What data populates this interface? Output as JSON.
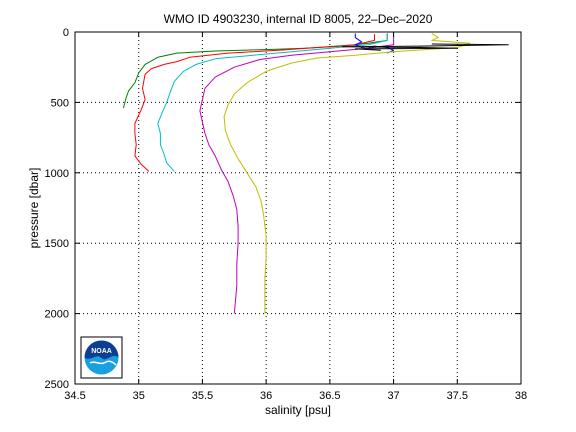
{
  "chart_data": {
    "type": "line",
    "title": "WMO ID 4903230, internal ID 8005, 22–Dec–2020",
    "xlabel": "salinity [psu]",
    "ylabel": "pressure [dbar]",
    "xlim": [
      34.5,
      38
    ],
    "ylim": [
      0,
      2500
    ],
    "y_reversed": true,
    "grid": true,
    "x_ticks": [
      34.5,
      35,
      35.5,
      36,
      36.5,
      37,
      37.5,
      38
    ],
    "x_tick_labels": [
      "34.5",
      "35",
      "35.5",
      "36",
      "36.5",
      "37",
      "37.5",
      "38"
    ],
    "y_ticks": [
      0,
      500,
      1000,
      1500,
      2000,
      2500
    ],
    "y_tick_labels": [
      "0",
      "500",
      "1000",
      "1500",
      "2000",
      "2500"
    ],
    "series": [
      {
        "color": "#008000",
        "points": [
          [
            36.95,
            10
          ],
          [
            36.95,
            60
          ],
          [
            36.8,
            80
          ],
          [
            36.6,
            100
          ],
          [
            36.3,
            115
          ],
          [
            36.0,
            125
          ],
          [
            35.6,
            135
          ],
          [
            35.3,
            150
          ],
          [
            35.15,
            180
          ],
          [
            35.05,
            230
          ],
          [
            35.0,
            290
          ],
          [
            34.97,
            360
          ],
          [
            34.92,
            420
          ],
          [
            34.9,
            470
          ],
          [
            34.88,
            540
          ]
        ]
      },
      {
        "color": "#ff0000",
        "points": [
          [
            36.85,
            15
          ],
          [
            36.85,
            60
          ],
          [
            36.7,
            90
          ],
          [
            36.4,
            110
          ],
          [
            36.1,
            130
          ],
          [
            35.7,
            150
          ],
          [
            35.4,
            180
          ],
          [
            35.3,
            210
          ],
          [
            35.2,
            230
          ],
          [
            35.1,
            260
          ],
          [
            35.05,
            300
          ],
          [
            35.03,
            400
          ],
          [
            35.05,
            480
          ],
          [
            35.02,
            550
          ],
          [
            34.97,
            650
          ],
          [
            34.97,
            720
          ],
          [
            34.98,
            800
          ],
          [
            34.97,
            880
          ],
          [
            35.02,
            940
          ],
          [
            35.08,
            990
          ]
        ]
      },
      {
        "color": "#00bfbf",
        "points": [
          [
            36.95,
            20
          ],
          [
            36.95,
            60
          ],
          [
            36.8,
            90
          ],
          [
            36.5,
            115
          ],
          [
            36.2,
            140
          ],
          [
            35.9,
            165
          ],
          [
            35.6,
            190
          ],
          [
            35.45,
            230
          ],
          [
            35.35,
            280
          ],
          [
            35.28,
            350
          ],
          [
            35.25,
            420
          ],
          [
            35.22,
            500
          ],
          [
            35.18,
            580
          ],
          [
            35.15,
            650
          ],
          [
            35.17,
            720
          ],
          [
            35.17,
            800
          ],
          [
            35.2,
            870
          ],
          [
            35.22,
            930
          ],
          [
            35.28,
            990
          ]
        ]
      },
      {
        "color": "#bf00bf",
        "points": [
          [
            37.0,
            20
          ],
          [
            37.0,
            60
          ],
          [
            37.0,
            90
          ],
          [
            36.8,
            115
          ],
          [
            36.5,
            140
          ],
          [
            36.2,
            165
          ],
          [
            35.95,
            195
          ],
          [
            35.75,
            250
          ],
          [
            35.6,
            320
          ],
          [
            35.52,
            400
          ],
          [
            35.5,
            480
          ],
          [
            35.48,
            560
          ],
          [
            35.5,
            640
          ],
          [
            35.52,
            720
          ],
          [
            35.55,
            800
          ],
          [
            35.6,
            880
          ],
          [
            35.65,
            980
          ],
          [
            35.7,
            1060
          ],
          [
            35.74,
            1160
          ],
          [
            35.77,
            1260
          ],
          [
            35.78,
            1380
          ],
          [
            35.78,
            1500
          ],
          [
            35.77,
            1650
          ],
          [
            35.77,
            1800
          ],
          [
            35.76,
            1900
          ],
          [
            35.75,
            2000
          ]
        ]
      },
      {
        "color": "#0000ff",
        "points": [
          [
            36.7,
            10
          ],
          [
            36.7,
            40
          ],
          [
            36.75,
            70
          ],
          [
            36.7,
            90
          ],
          [
            36.75,
            110
          ],
          [
            36.85,
            100
          ],
          [
            36.95,
            110
          ],
          [
            37.0,
            130
          ],
          [
            36.95,
            150
          ]
        ]
      },
      {
        "color": "#bfbf00",
        "points": [
          [
            37.3,
            10
          ],
          [
            37.35,
            40
          ],
          [
            37.3,
            60
          ],
          [
            37.6,
            80
          ],
          [
            37.5,
            110
          ],
          [
            37.0,
            140
          ],
          [
            36.7,
            165
          ],
          [
            36.4,
            185
          ],
          [
            36.2,
            220
          ],
          [
            36.0,
            280
          ],
          [
            35.85,
            360
          ],
          [
            35.75,
            440
          ],
          [
            35.7,
            520
          ],
          [
            35.67,
            600
          ],
          [
            35.68,
            700
          ],
          [
            35.72,
            800
          ],
          [
            35.78,
            900
          ],
          [
            35.85,
            1000
          ],
          [
            35.92,
            1100
          ],
          [
            35.96,
            1200
          ],
          [
            35.98,
            1300
          ],
          [
            36.0,
            1450
          ],
          [
            36.0,
            1600
          ],
          [
            35.99,
            1750
          ],
          [
            35.99,
            1900
          ],
          [
            35.99,
            2000
          ]
        ]
      },
      {
        "color": "#000000",
        "points": [
          [
            37.3,
            85
          ],
          [
            37.9,
            90
          ],
          [
            37.2,
            100
          ],
          [
            36.6,
            105
          ],
          [
            37.2,
            110
          ],
          [
            37.5,
            115
          ],
          [
            36.7,
            120
          ],
          [
            36.9,
            130
          ]
        ]
      }
    ]
  },
  "logo": {
    "text": "NOAA",
    "colors": [
      "#0d3e91",
      "#1aa0e0",
      "#ffffff"
    ]
  }
}
